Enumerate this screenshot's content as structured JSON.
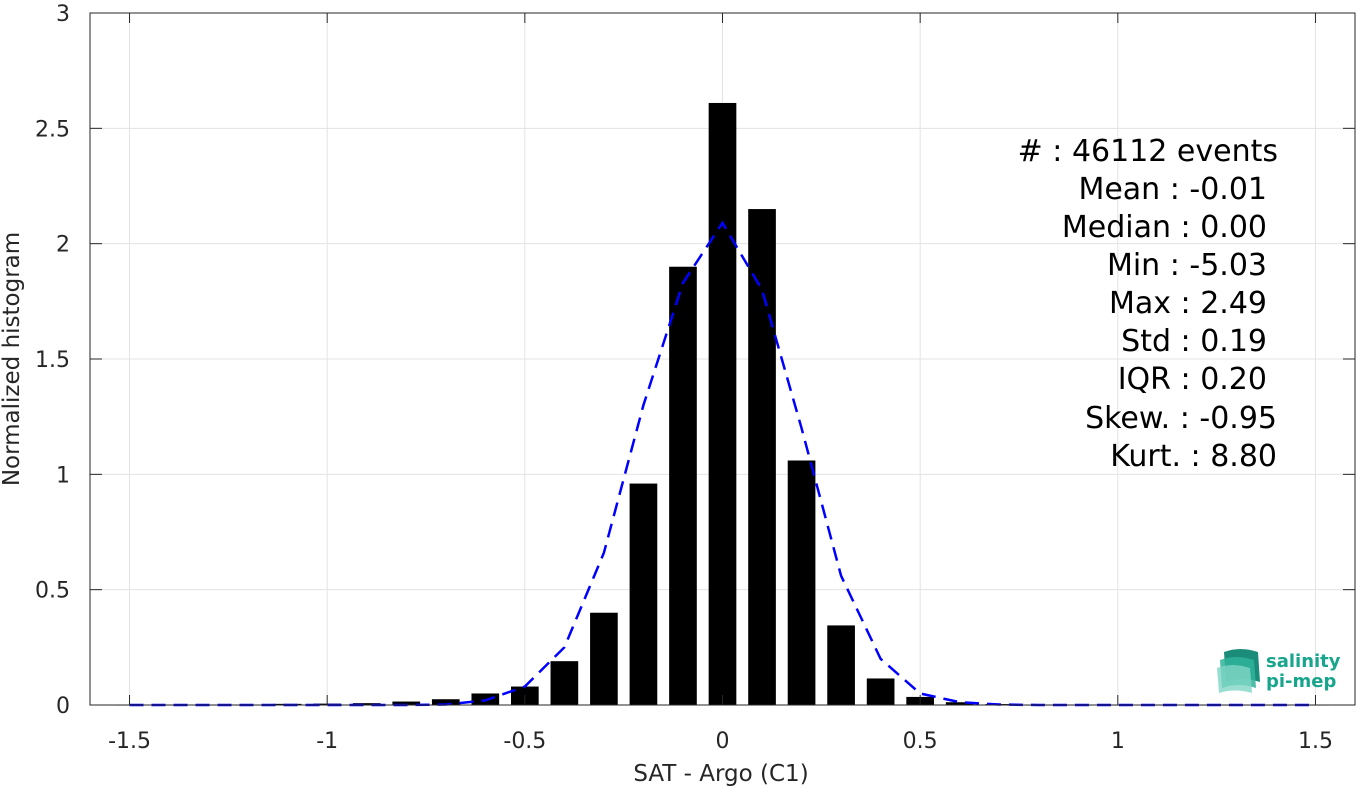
{
  "chart_data": {
    "type": "bar",
    "xlabel": "SAT - Argo (C1)",
    "ylabel": "Normalized histogram",
    "xlim": [
      -1.6,
      1.6
    ],
    "ylim": [
      0,
      3
    ],
    "grid": true,
    "xticks": [
      -1.5,
      -1,
      -0.5,
      0,
      0.5,
      1,
      1.5
    ],
    "xtick_labels": [
      "-1.5",
      "-1",
      "-0.5",
      "0",
      "0.5",
      "1",
      "1.5"
    ],
    "yticks": [
      0,
      0.5,
      1,
      1.5,
      2,
      2.5,
      3
    ],
    "ytick_labels": [
      "0",
      "0.5",
      "1",
      "1.5",
      "2",
      "2.5",
      "3"
    ],
    "bar_width": 0.07,
    "bar_color": "#000000",
    "bars": {
      "x": [
        -1.5,
        -1.4,
        -1.3,
        -1.2,
        -1.1,
        -1.0,
        -0.9,
        -0.8,
        -0.7,
        -0.6,
        -0.5,
        -0.4,
        -0.3,
        -0.2,
        -0.1,
        0.0,
        0.1,
        0.2,
        0.3,
        0.4,
        0.5,
        0.6,
        0.7,
        0.8,
        0.9,
        1.0,
        1.1,
        1.2,
        1.3,
        1.4,
        1.5
      ],
      "y": [
        0.002,
        0.002,
        0.002,
        0.002,
        0.005,
        0.006,
        0.008,
        0.015,
        0.025,
        0.05,
        0.08,
        0.19,
        0.4,
        0.96,
        1.9,
        2.61,
        2.15,
        1.06,
        0.345,
        0.115,
        0.035,
        0.012,
        0.004,
        0.002,
        0.002,
        0.002,
        0.002,
        0.002,
        0.002,
        0.002,
        0.002
      ]
    },
    "fit_curve": {
      "style": "dashed",
      "color": "#0000ff",
      "x": [
        -1.5,
        -1.4,
        -1.3,
        -1.2,
        -1.1,
        -1.0,
        -0.9,
        -0.8,
        -0.7,
        -0.6,
        -0.5,
        -0.4,
        -0.3,
        -0.2,
        -0.1,
        0.0,
        0.1,
        0.2,
        0.3,
        0.4,
        0.5,
        0.6,
        0.7,
        0.8,
        0.9,
        1.0,
        1.1,
        1.2,
        1.3,
        1.4,
        1.5
      ],
      "y": [
        0,
        0,
        0,
        0,
        0,
        0,
        0,
        0,
        0.002,
        0.02,
        0.08,
        0.25,
        0.66,
        1.3,
        1.83,
        2.09,
        1.8,
        1.2,
        0.56,
        0.2,
        0.05,
        0.012,
        0.002,
        0,
        0,
        0,
        0,
        0,
        0,
        0,
        0
      ]
    }
  },
  "stats": [
    "#  : 46112 events",
    "Mean : -0.01",
    "Median : 0.00",
    "Min : -5.03",
    "Max : 2.49",
    "Std : 0.19",
    "IQR : 0.20",
    "Skew. : -0.95",
    "Kurt. : 8.80"
  ],
  "logo": {
    "line1": "salinity",
    "line2": "pi-mep",
    "color": "#17a58c"
  }
}
